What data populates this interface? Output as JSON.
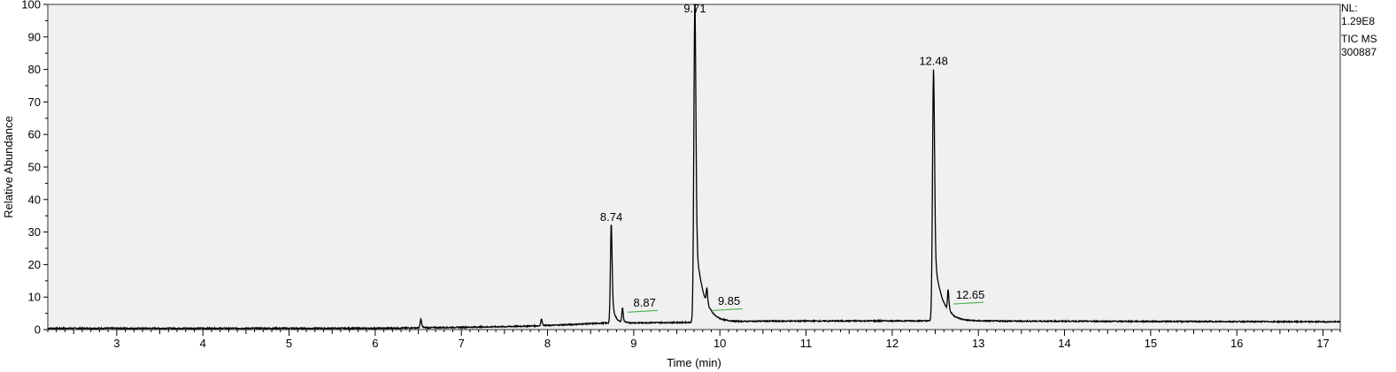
{
  "header": {
    "nl_label": "NL:",
    "nl_value": "1.29E8",
    "trace_type": "TIC  MS",
    "sample_id": "300887"
  },
  "chart_data": {
    "type": "line",
    "title": "",
    "xlabel": "Time (min)",
    "ylabel": "Relative Abundance",
    "xlim": [
      2.2,
      17.2
    ],
    "ylim": [
      0,
      100
    ],
    "xticks": [
      3,
      4,
      5,
      6,
      7,
      8,
      9,
      10,
      11,
      12,
      13,
      14,
      15,
      16,
      17
    ],
    "yticks": [
      0,
      10,
      20,
      30,
      40,
      50,
      60,
      70,
      80,
      90,
      100
    ],
    "baseline_points": [
      [
        2.2,
        0.4
      ],
      [
        6.0,
        0.4
      ],
      [
        7.0,
        0.7
      ],
      [
        7.5,
        0.9
      ],
      [
        7.95,
        1.2
      ],
      [
        8.3,
        1.6
      ],
      [
        8.65,
        2.0
      ],
      [
        9.6,
        2.2
      ],
      [
        10.5,
        2.6
      ],
      [
        12.3,
        2.7
      ],
      [
        13.5,
        2.6
      ],
      [
        17.2,
        2.4
      ]
    ],
    "peaks": [
      {
        "rt": 6.53,
        "height": 3.2,
        "label": ""
      },
      {
        "rt": 7.93,
        "height": 3.2,
        "label": ""
      },
      {
        "rt": 8.74,
        "height": 32.0,
        "label": "8.74"
      },
      {
        "rt": 8.87,
        "height": 6.5,
        "label": "8.87"
      },
      {
        "rt": 9.71,
        "height": 100.0,
        "label": "9.71"
      },
      {
        "rt": 9.85,
        "height": 7.0,
        "label": "9.85"
      },
      {
        "rt": 12.48,
        "height": 80.0,
        "label": "12.48"
      },
      {
        "rt": 12.65,
        "height": 9.0,
        "label": "12.65"
      }
    ],
    "colors": {
      "trace": "#000000",
      "plot_background": "#f0f0f0",
      "annotation_marker": "#4caf50"
    }
  }
}
